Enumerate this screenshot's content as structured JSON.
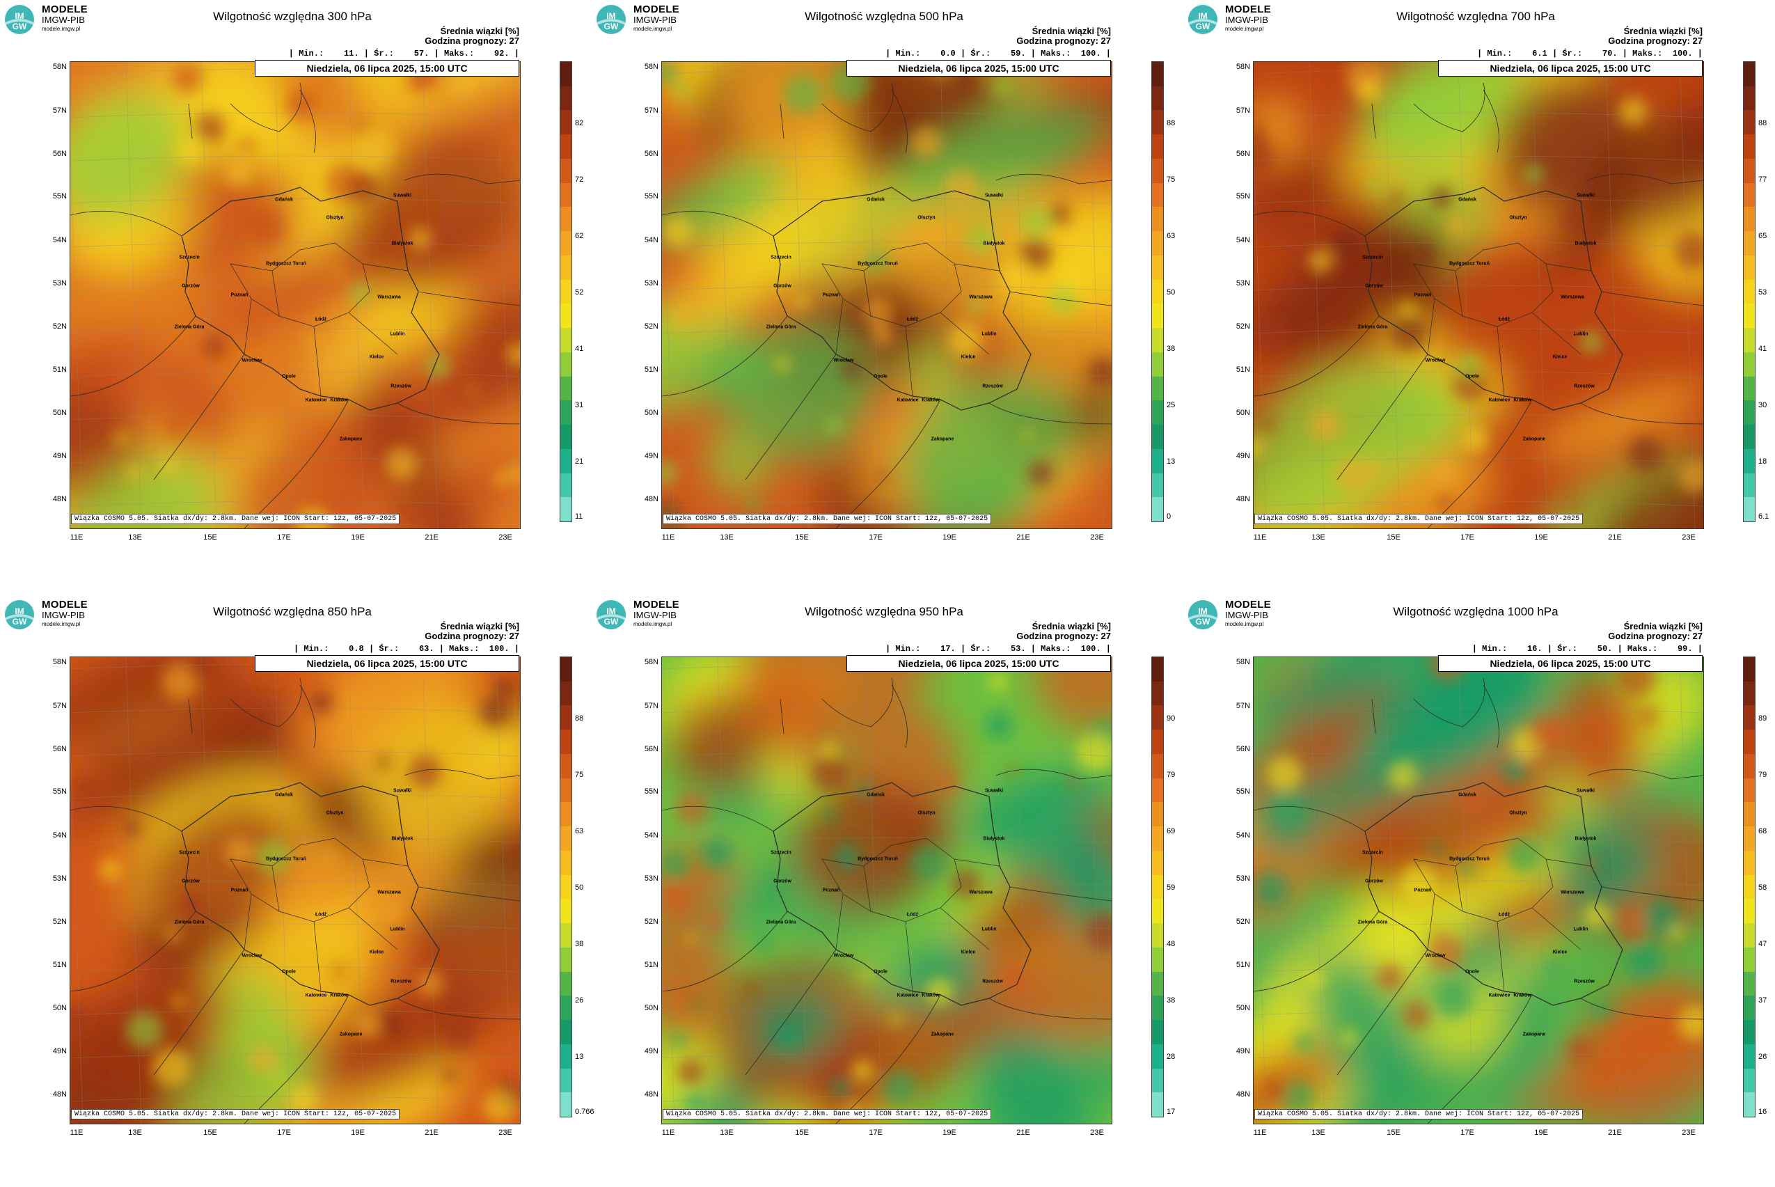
{
  "brand": {
    "main": "MODELE",
    "sub": "IMGW-PIB",
    "url": "modele.imgw.pl",
    "logo_text": "IMGW"
  },
  "common": {
    "info_line1": "Średnia wiązki [%]",
    "info_line2": "Godzina prognozy: 27",
    "valid": "Niedziela, 06 lipca 2025, 15:00 UTC",
    "footer": "Wiązka COSMO 5.05. Siatka dx/dy: 2.8km. Dane wej: ICON Start: 12z, 05-07-2025",
    "lat_labels": [
      "58N",
      "57N",
      "56N",
      "55N",
      "54N",
      "53N",
      "52N",
      "51N",
      "50N",
      "49N",
      "48N"
    ],
    "lon_labels": [
      "11E",
      "13E",
      "15E",
      "17E",
      "19E",
      "21E",
      "23E"
    ],
    "cities": [
      "Gdańsk",
      "Olsztyn",
      "Suwałki",
      "Szczecin",
      "Białystok",
      "Bydgoszcz Toruń",
      "Gorzów",
      "Poznań",
      "Warszawa",
      "Łódź",
      "Zielona Góra",
      "Lublin",
      "Wrocław",
      "Kielce",
      "Opole",
      "Rzeszów",
      "Katowice",
      "Kraków",
      "Zakopane"
    ]
  },
  "panels": [
    {
      "title": "Wilgotność względna 300 hPa",
      "stats": "| Min.:    11. | Śr.:    57. | Maks.:    92. |",
      "ticks": [
        "82",
        "72",
        "62",
        "52",
        "41",
        "31",
        "21",
        "11"
      ],
      "theme": "p300"
    },
    {
      "title": "Wilgotność względna 500 hPa",
      "stats": "| Min.:    0.0 | Śr.:    59. | Maks.:  100. |",
      "ticks": [
        "88",
        "75",
        "63",
        "50",
        "38",
        "25",
        "13",
        "0"
      ],
      "theme": "p500"
    },
    {
      "title": "Wilgotność względna 700 hPa",
      "stats": "| Min.:    6.1 | Śr.:    70. | Maks.:  100. |",
      "ticks": [
        "88",
        "77",
        "65",
        "53",
        "41",
        "30",
        "18",
        "6.1"
      ],
      "theme": "p700"
    },
    {
      "title": "Wilgotność względna 850 hPa",
      "stats": "| Min.:    0.8 | Śr.:    63. | Maks.:  100. |",
      "ticks": [
        "88",
        "75",
        "63",
        "50",
        "38",
        "26",
        "13",
        "0.766"
      ],
      "theme": "p850"
    },
    {
      "title": "Wilgotność względna 950 hPa",
      "stats": "| Min.:    17. | Śr.:    53. | Maks.:  100. |",
      "ticks": [
        "90",
        "79",
        "69",
        "59",
        "48",
        "38",
        "28",
        "17"
      ],
      "theme": "p950"
    },
    {
      "title": "Wilgotność względna 1000 hPa",
      "stats": "| Min.:    16. | Śr.:    50. | Maks.:    99. |",
      "ticks": [
        "89",
        "79",
        "68",
        "58",
        "47",
        "37",
        "26",
        "16"
      ],
      "theme": "p1000"
    }
  ],
  "colorbar": [
    "#5f1e0f",
    "#7a2812",
    "#9c3413",
    "#bd4313",
    "#d3591a",
    "#e2721f",
    "#ec8e22",
    "#f2a623",
    "#f5bd22",
    "#f6d41d",
    "#f2e41b",
    "#c8dd2b",
    "#8fcd3a",
    "#55b447",
    "#2ea45a",
    "#169a68",
    "#1eb08a",
    "#44c7a8",
    "#7ee0cb"
  ]
}
